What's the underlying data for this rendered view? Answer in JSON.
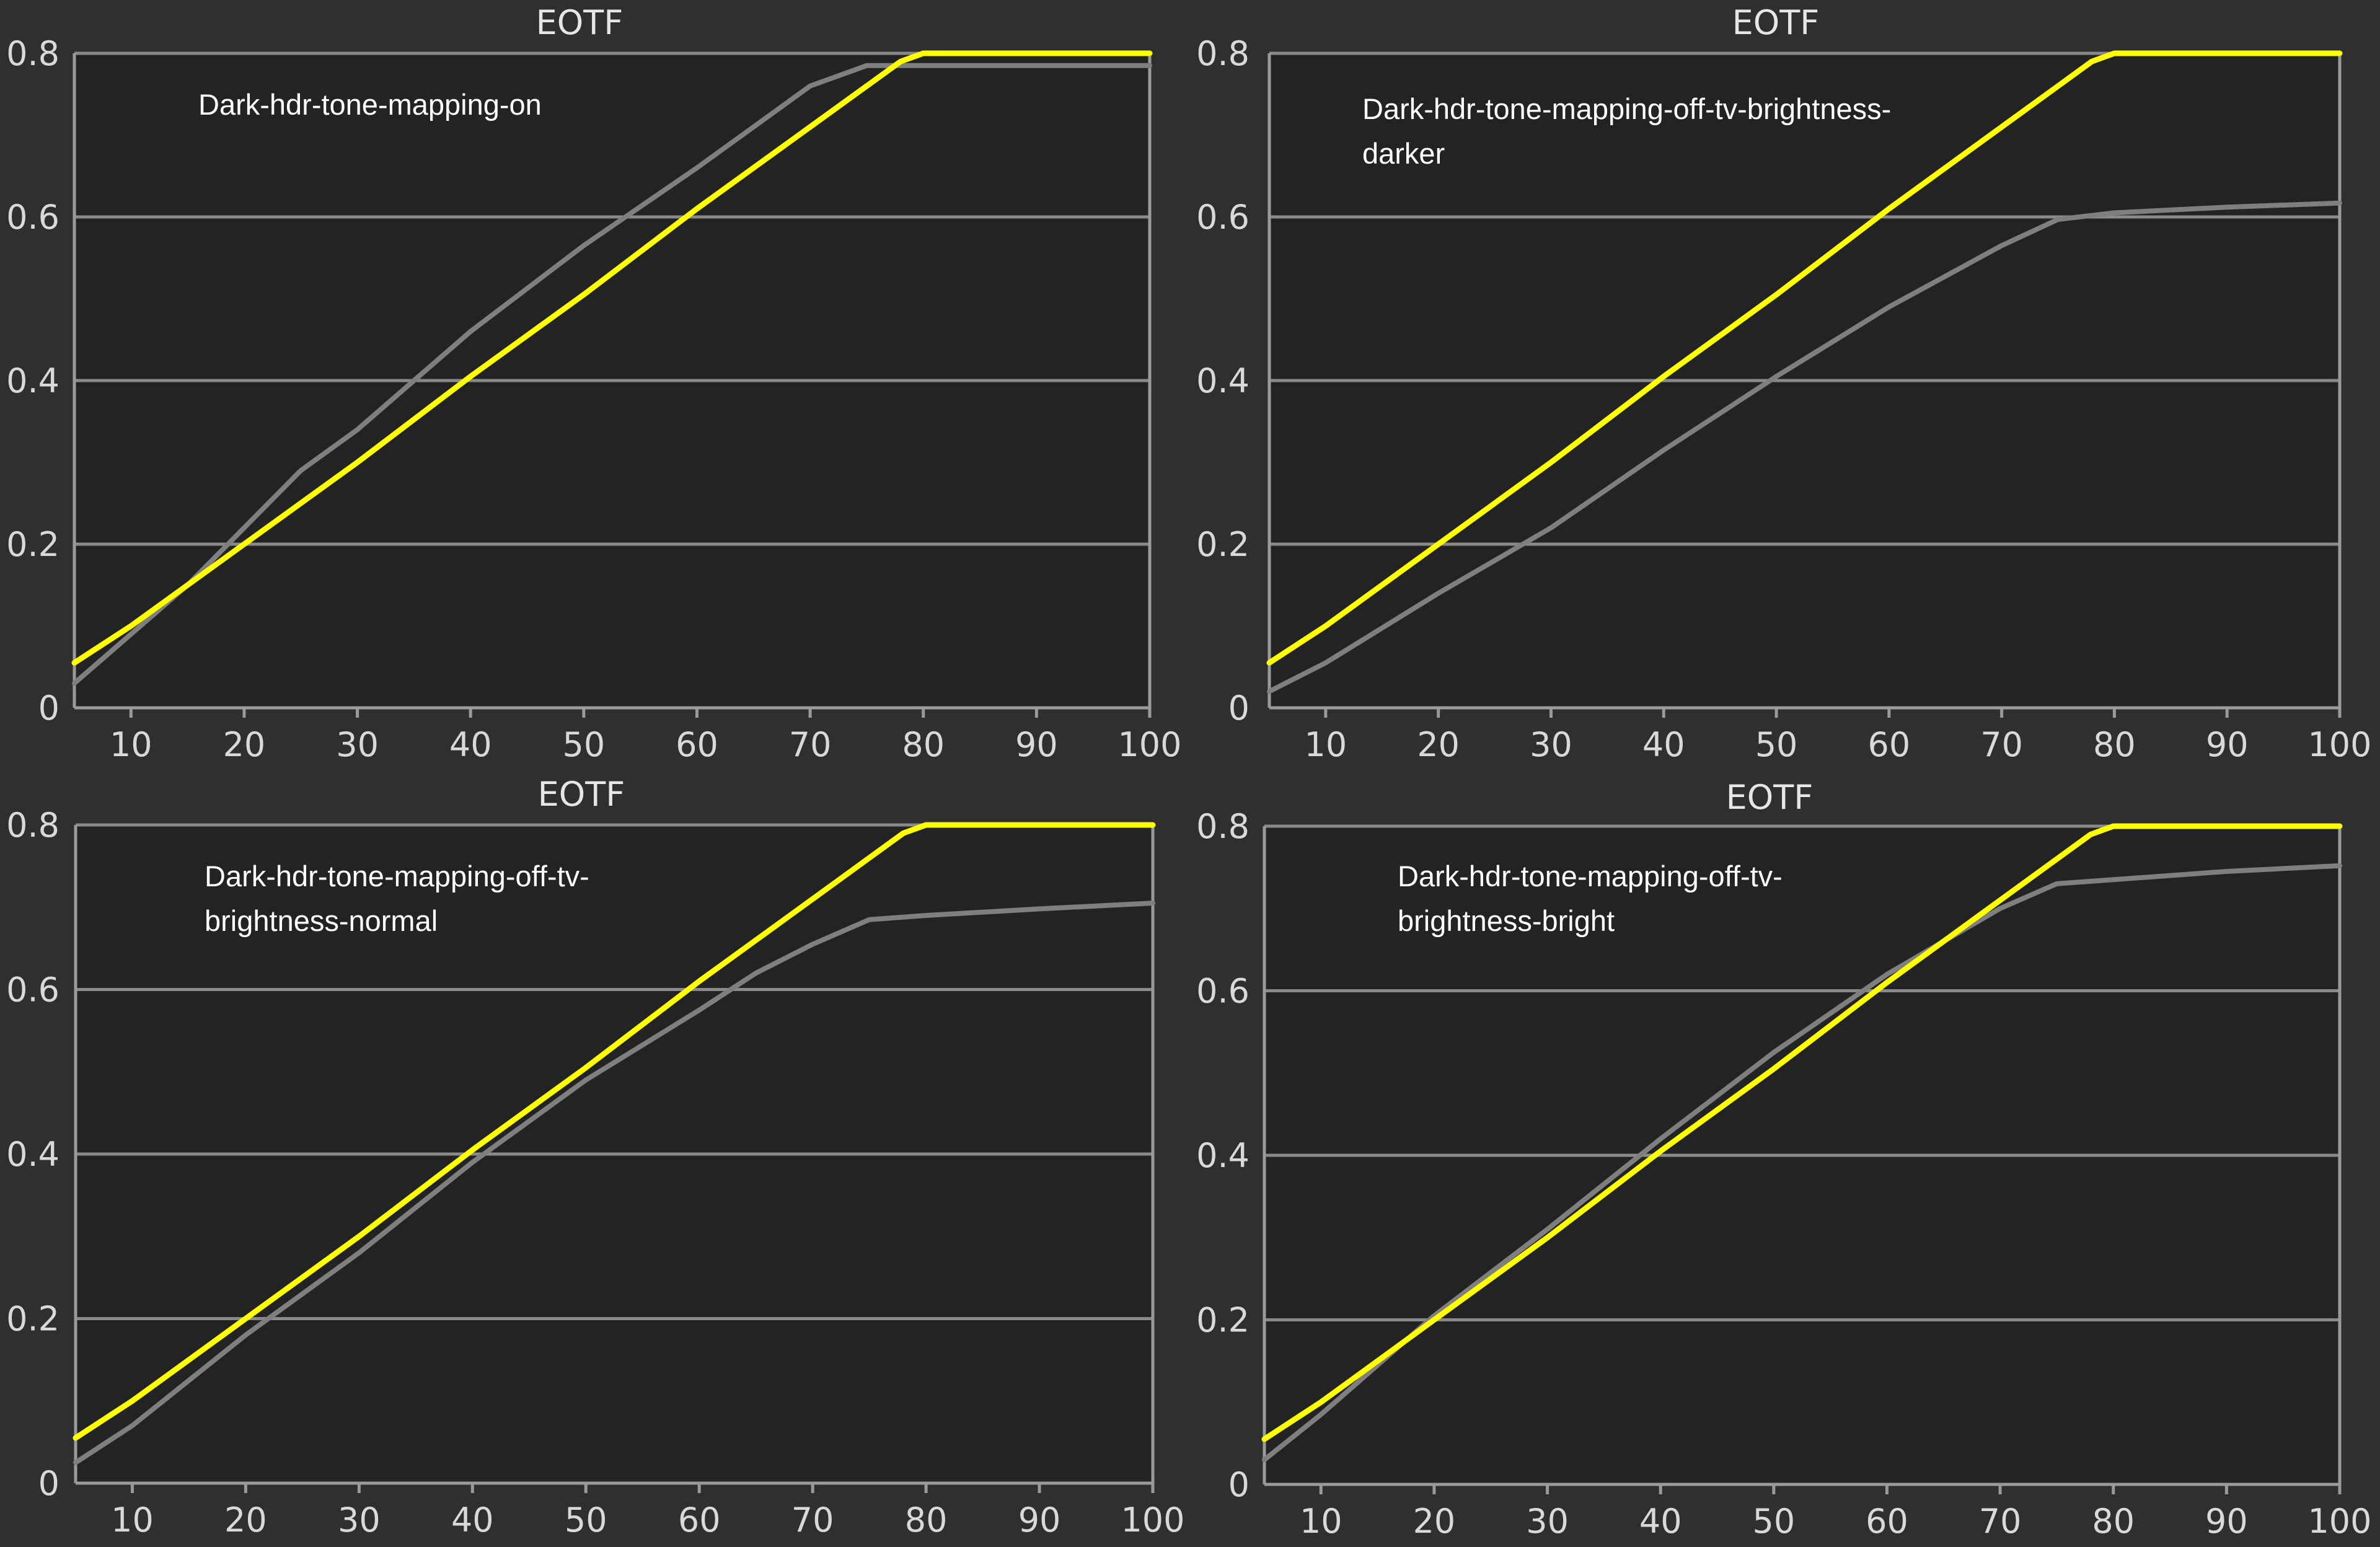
{
  "colors": {
    "background": "#2f2f2f",
    "plot_background": "#232323",
    "target_series": "#ffff00",
    "measured_series": "#7f7f7f"
  },
  "chart_data": [
    {
      "type": "line",
      "title": "EOTF",
      "annotation": [
        "Dark-hdr-tone-mapping-on"
      ],
      "xlim": [
        5,
        100
      ],
      "ylim": [
        0,
        0.8
      ],
      "x_ticks": [
        "10",
        "20",
        "30",
        "40",
        "50",
        "60",
        "70",
        "80",
        "90",
        "100"
      ],
      "y_ticks": [
        "0",
        "0.2",
        "0.4",
        "0.6",
        "0.8"
      ],
      "grid": true,
      "series": [
        {
          "color": "#ffff00",
          "points": [
            [
              5,
              0.055
            ],
            [
              10,
              0.1
            ],
            [
              20,
              0.2
            ],
            [
              30,
              0.3
            ],
            [
              40,
              0.405
            ],
            [
              50,
              0.505
            ],
            [
              60,
              0.61
            ],
            [
              70,
              0.71
            ],
            [
              78,
              0.79
            ],
            [
              80,
              0.8
            ],
            [
              100,
              0.8
            ]
          ]
        },
        {
          "color": "#7f7f7f",
          "points": [
            [
              5,
              0.03
            ],
            [
              10,
              0.09
            ],
            [
              15,
              0.15
            ],
            [
              20,
              0.22
            ],
            [
              25,
              0.29
            ],
            [
              30,
              0.34
            ],
            [
              40,
              0.46
            ],
            [
              50,
              0.565
            ],
            [
              60,
              0.66
            ],
            [
              70,
              0.76
            ],
            [
              75,
              0.785
            ],
            [
              100,
              0.785
            ]
          ]
        }
      ]
    },
    {
      "type": "line",
      "title": "EOTF",
      "annotation": [
        "Dark-hdr-tone-mapping-off-tv-brightness-",
        "darker"
      ],
      "xlim": [
        5,
        100
      ],
      "ylim": [
        0,
        0.8
      ],
      "x_ticks": [
        "10",
        "20",
        "30",
        "40",
        "50",
        "60",
        "70",
        "80",
        "90",
        "100"
      ],
      "y_ticks": [
        "0",
        "0.2",
        "0.4",
        "0.6",
        "0.8"
      ],
      "grid": true,
      "series": [
        {
          "color": "#ffff00",
          "points": [
            [
              5,
              0.055
            ],
            [
              10,
              0.1
            ],
            [
              20,
              0.2
            ],
            [
              30,
              0.3
            ],
            [
              40,
              0.405
            ],
            [
              50,
              0.505
            ],
            [
              60,
              0.61
            ],
            [
              70,
              0.71
            ],
            [
              78,
              0.79
            ],
            [
              80,
              0.8
            ],
            [
              100,
              0.8
            ]
          ]
        },
        {
          "color": "#7f7f7f",
          "points": [
            [
              5,
              0.02
            ],
            [
              10,
              0.055
            ],
            [
              20,
              0.14
            ],
            [
              30,
              0.22
            ],
            [
              40,
              0.315
            ],
            [
              50,
              0.405
            ],
            [
              60,
              0.49
            ],
            [
              70,
              0.565
            ],
            [
              75,
              0.597
            ],
            [
              80,
              0.605
            ],
            [
              90,
              0.612
            ],
            [
              100,
              0.617
            ]
          ]
        }
      ]
    },
    {
      "type": "line",
      "title": "EOTF",
      "annotation": [
        "Dark-hdr-tone-mapping-off-tv-",
        "brightness-normal"
      ],
      "xlim": [
        5,
        100
      ],
      "ylim": [
        0,
        0.8
      ],
      "x_ticks": [
        "10",
        "20",
        "30",
        "40",
        "50",
        "60",
        "70",
        "80",
        "90",
        "100"
      ],
      "y_ticks": [
        "0",
        "0.2",
        "0.4",
        "0.6",
        "0.8"
      ],
      "grid": true,
      "series": [
        {
          "color": "#ffff00",
          "points": [
            [
              5,
              0.055
            ],
            [
              10,
              0.1
            ],
            [
              20,
              0.2
            ],
            [
              30,
              0.3
            ],
            [
              40,
              0.405
            ],
            [
              50,
              0.505
            ],
            [
              60,
              0.61
            ],
            [
              70,
              0.71
            ],
            [
              78,
              0.79
            ],
            [
              80,
              0.8
            ],
            [
              100,
              0.8
            ]
          ]
        },
        {
          "color": "#7f7f7f",
          "points": [
            [
              5,
              0.025
            ],
            [
              10,
              0.07
            ],
            [
              20,
              0.18
            ],
            [
              30,
              0.28
            ],
            [
              40,
              0.39
            ],
            [
              50,
              0.49
            ],
            [
              60,
              0.575
            ],
            [
              65,
              0.62
            ],
            [
              70,
              0.655
            ],
            [
              75,
              0.685
            ],
            [
              80,
              0.69
            ],
            [
              90,
              0.698
            ],
            [
              100,
              0.705
            ]
          ]
        }
      ]
    },
    {
      "type": "line",
      "title": "EOTF",
      "annotation": [
        "Dark-hdr-tone-mapping-off-tv-",
        "brightness-bright"
      ],
      "xlim": [
        5,
        100
      ],
      "ylim": [
        0,
        0.8
      ],
      "x_ticks": [
        "10",
        "20",
        "30",
        "40",
        "50",
        "60",
        "70",
        "80",
        "90",
        "100"
      ],
      "y_ticks": [
        "0",
        "0.2",
        "0.4",
        "0.6",
        "0.8"
      ],
      "grid": true,
      "series": [
        {
          "color": "#ffff00",
          "points": [
            [
              5,
              0.055
            ],
            [
              10,
              0.1
            ],
            [
              20,
              0.2
            ],
            [
              30,
              0.3
            ],
            [
              40,
              0.405
            ],
            [
              50,
              0.505
            ],
            [
              60,
              0.61
            ],
            [
              70,
              0.71
            ],
            [
              78,
              0.79
            ],
            [
              80,
              0.8
            ],
            [
              100,
              0.8
            ]
          ]
        },
        {
          "color": "#7f7f7f",
          "points": [
            [
              5,
              0.03
            ],
            [
              10,
              0.085
            ],
            [
              20,
              0.205
            ],
            [
              30,
              0.31
            ],
            [
              40,
              0.42
            ],
            [
              50,
              0.525
            ],
            [
              60,
              0.62
            ],
            [
              70,
              0.7
            ],
            [
              75,
              0.73
            ],
            [
              80,
              0.735
            ],
            [
              90,
              0.745
            ],
            [
              100,
              0.752
            ]
          ]
        }
      ]
    }
  ]
}
